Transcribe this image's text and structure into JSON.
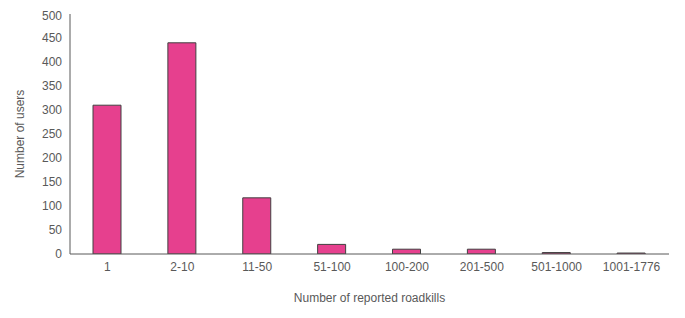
{
  "chart_data": {
    "type": "bar",
    "x_label": "Number of reported roadkills",
    "y_label": "Number of users",
    "categories": [
      "1",
      "2-10",
      "11-50",
      "51-100",
      "100-200",
      "201-500",
      "501-1000",
      "1001-1776"
    ],
    "values": [
      310,
      440,
      117,
      20,
      10,
      10,
      3,
      2
    ],
    "color": "#e6408e",
    "ylim": [
      0,
      500
    ],
    "yticks": [
      0,
      50,
      100,
      150,
      200,
      250,
      300,
      350,
      400,
      450,
      500
    ],
    "grid": false
  }
}
